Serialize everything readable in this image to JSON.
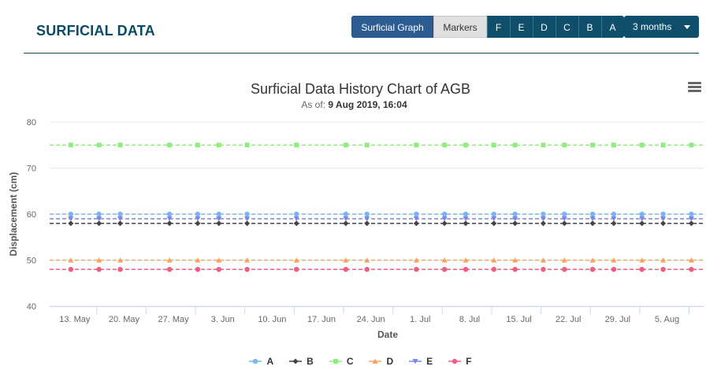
{
  "header": {
    "title": "SURFICIAL DATA"
  },
  "toolbar": {
    "graph_label": "Surficial Graph",
    "markers_label": "Markers",
    "marker_buttons": [
      "F",
      "E",
      "D",
      "C",
      "B",
      "A"
    ],
    "range_label": "3 months"
  },
  "chart_data": {
    "type": "line",
    "title": "Surficial Data History Chart of AGB",
    "subtitle_prefix": "As of: ",
    "subtitle_value": "9 Aug 2019, 16:04",
    "xlabel": "Date",
    "ylabel": "Displacement (cm)",
    "ylim": [
      40,
      80
    ],
    "yticks": [
      40,
      50,
      60,
      70,
      80
    ],
    "x_tick_labels": [
      "13. May",
      "20. May",
      "27. May",
      "3. Jun",
      "10. Jun",
      "17. Jun",
      "24. Jun",
      "1. Jul",
      "8. Jul",
      "15. Jul",
      "22. Jul",
      "29. Jul",
      "5. Aug"
    ],
    "x": [
      "2019-05-12",
      "2019-05-16",
      "2019-05-19",
      "2019-05-26",
      "2019-05-30",
      "2019-06-02",
      "2019-06-06",
      "2019-06-13",
      "2019-06-20",
      "2019-06-23",
      "2019-06-30",
      "2019-07-04",
      "2019-07-07",
      "2019-07-11",
      "2019-07-14",
      "2019-07-18",
      "2019-07-21",
      "2019-07-25",
      "2019-07-28",
      "2019-08-01",
      "2019-08-04",
      "2019-08-08"
    ],
    "grid": true,
    "legend_position": "bottom-center",
    "series": [
      {
        "name": "A",
        "color": "#7cb5ec",
        "marker": "circle",
        "value": 60
      },
      {
        "name": "B",
        "color": "#434348",
        "marker": "diamond",
        "value": 58
      },
      {
        "name": "C",
        "color": "#90ed7d",
        "marker": "square",
        "value": 75
      },
      {
        "name": "D",
        "color": "#f7a35c",
        "marker": "triangle",
        "value": 50
      },
      {
        "name": "E",
        "color": "#8085e9",
        "marker": "triangle-down",
        "value": 59
      },
      {
        "name": "F",
        "color": "#f15c80",
        "marker": "circle",
        "value": 48
      }
    ]
  }
}
